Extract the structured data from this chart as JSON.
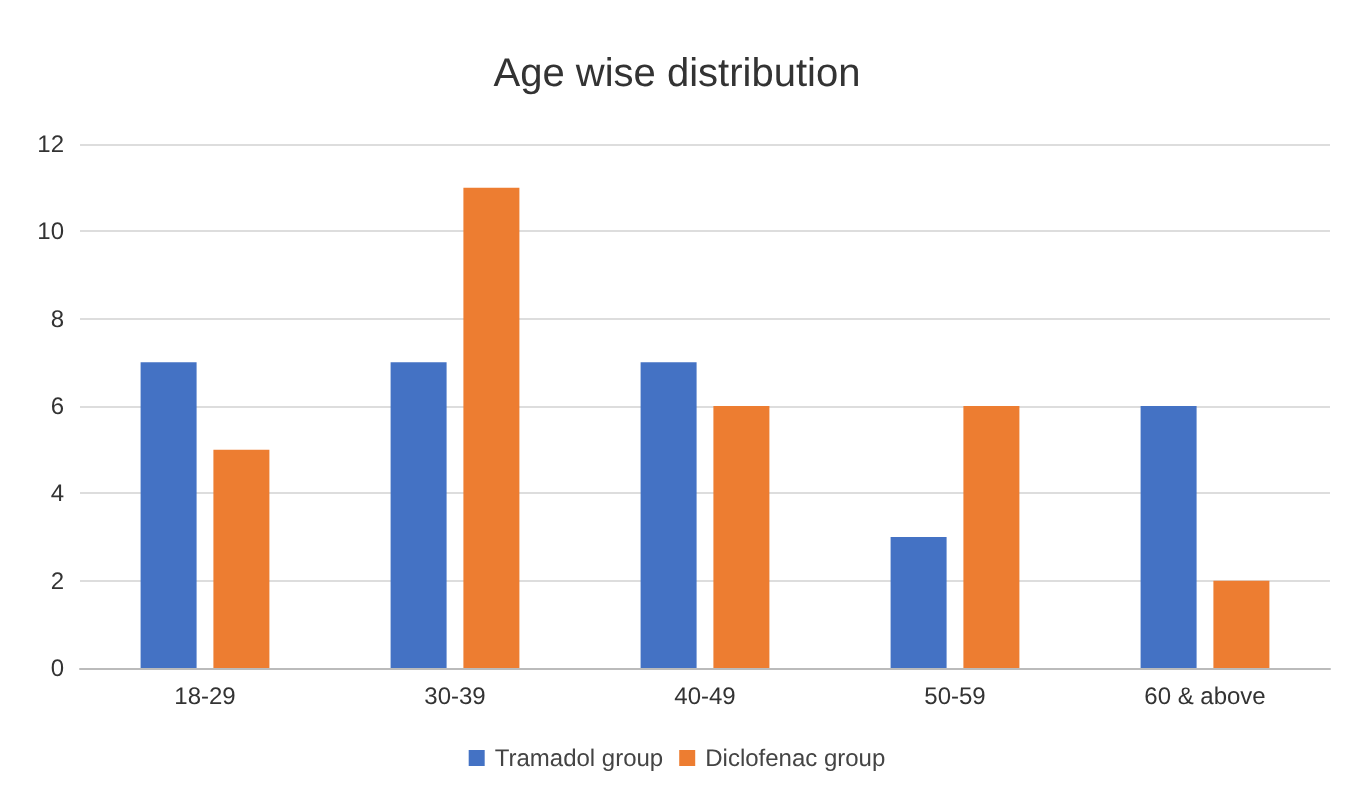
{
  "chart_data": {
    "type": "bar",
    "title": "Age wise distribution",
    "categories": [
      "18-29",
      "30-39",
      "40-49",
      "50-59",
      "60 & above"
    ],
    "series": [
      {
        "name": "Tramadol group",
        "color": "#4472c4",
        "values": [
          7,
          7,
          7,
          3,
          6
        ]
      },
      {
        "name": "Diclofenac group",
        "color": "#ed7d31",
        "values": [
          5,
          11,
          6,
          6,
          2
        ]
      }
    ],
    "ylim": [
      0,
      12
    ],
    "yticks": [
      0,
      2,
      4,
      6,
      8,
      10,
      12
    ],
    "grid": "y",
    "legend": "bottom"
  }
}
